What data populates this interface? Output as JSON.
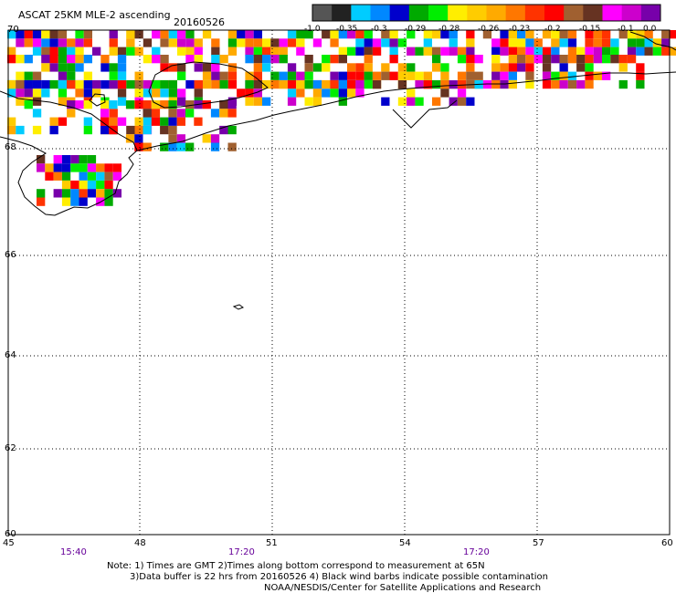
{
  "header": {
    "title": "ASCAT 25KM MLE-2 ascending",
    "date": "20160526"
  },
  "colorbar": {
    "colors": [
      "#555555",
      "#222222",
      "#00ccff",
      "#0088ff",
      "#0000cc",
      "#00aa00",
      "#00ee00",
      "#ffee00",
      "#ffcc00",
      "#ffaa00",
      "#ff7700",
      "#ff3300",
      "#ff0000",
      "#a06030",
      "#663322",
      "#ff00ff",
      "#cc00cc",
      "#7700aa"
    ],
    "labels": [
      "-1.0",
      "-0.35",
      "-0.3",
      "-0.29",
      "-0.28",
      "-0.26",
      "-0.23",
      "-0.2",
      "-0.15",
      "-0.1",
      "0.0"
    ]
  },
  "map": {
    "lat_labels": [
      "70",
      "68",
      "66",
      "64",
      "62",
      "60"
    ],
    "lon_labels": [
      "45",
      "48",
      "51",
      "54",
      "57",
      "60"
    ],
    "times": [
      "15:40",
      "17:20",
      "17:20"
    ]
  },
  "notes": {
    "line1": "Note: 1) Times are GMT 2)Times along bottom correspond to measurement at 65N",
    "line2": "3)Data buffer is 22 hrs from 20160526 4) Black wind barbs indicate possible contamination",
    "line3": "NOAA/NESDIS/Center for Satellite Applications and Research"
  }
}
